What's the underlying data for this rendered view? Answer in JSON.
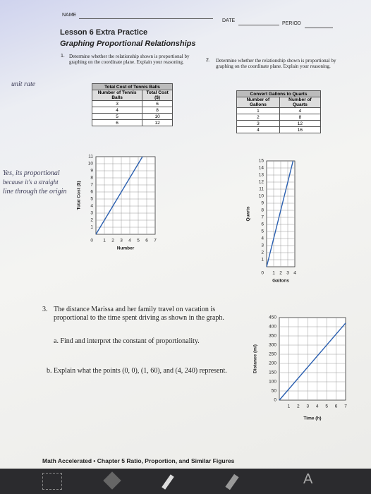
{
  "header": {
    "name": "NAME",
    "date": "DATE",
    "period": "PERIOD",
    "lesson": "Lesson 6 Extra Practice",
    "subtitle": "Graphing Proportional Relationships"
  },
  "problem1": {
    "number": "1.",
    "text": "Determine whether the relationship shown is proportional by graphing on the coordinate plane. Explain your reasoning.",
    "table": {
      "title": "Total Cost of Tennis Balls",
      "headers": [
        "Number of Tennis Balls",
        "Total Cost ($)"
      ],
      "rows": [
        [
          "3",
          "6"
        ],
        [
          "4",
          "8"
        ],
        [
          "5",
          "10"
        ],
        [
          "6",
          "12"
        ]
      ]
    },
    "graph": {
      "y_label": "Total Cost ($)",
      "x_label": "Number",
      "origin": "0",
      "yticks": [
        "1",
        "2",
        "3",
        "4",
        "5",
        "6",
        "7",
        "8",
        "9",
        "10",
        "11"
      ],
      "xticks": [
        "1",
        "2",
        "3",
        "4",
        "5",
        "6",
        "7"
      ]
    }
  },
  "problem2": {
    "number": "2.",
    "text": "Determine whether the relationship shown is proportional by graphing on the coordinate plane. Explain your reasoning.",
    "table": {
      "title": "Convert Gallons to Quarts",
      "headers": [
        "Number of Gallons",
        "Number of Quarts"
      ],
      "rows": [
        [
          "1",
          "4"
        ],
        [
          "2",
          "8"
        ],
        [
          "3",
          "12"
        ],
        [
          "4",
          "16"
        ]
      ]
    },
    "graph": {
      "y_label": "Quarts",
      "x_label": "Gallons",
      "origin": "0",
      "yticks": [
        "1",
        "2",
        "3",
        "4",
        "5",
        "6",
        "7",
        "8",
        "9",
        "10",
        "11",
        "12",
        "13",
        "14",
        "15"
      ],
      "xticks": [
        "1",
        "2",
        "3",
        "4"
      ]
    }
  },
  "problem3": {
    "number": "3.",
    "text": "The distance Marissa and her family travel on vacation is proportional to the time spent driving as shown in the graph.",
    "part_a": "a. Find and interpret the constant of proportionality.",
    "part_b": "b. Explain what the points (0, 0), (1, 60), and (4, 240) represent.",
    "graph": {
      "y_label": "Distance (mi)",
      "x_label": "Time (h)",
      "yticks": [
        "0",
        "50",
        "100",
        "150",
        "200",
        "250",
        "300",
        "350",
        "400",
        "450"
      ],
      "xticks": [
        "1",
        "2",
        "3",
        "4",
        "5",
        "6",
        "7"
      ]
    }
  },
  "handwriting": {
    "note": "unit rate",
    "answer": [
      "Yes, its proportional",
      "because it's a straight",
      "line through the origin"
    ]
  },
  "footer": "Math Accelerated • Chapter 5 Ratio, Proportion, and Similar Figures"
}
